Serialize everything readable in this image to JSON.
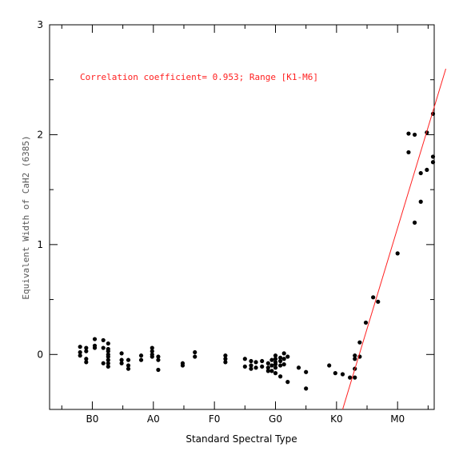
{
  "chart_data": {
    "type": "scatter",
    "xlabel": "Standard Spectral Type",
    "ylabel": "Equivalent Width of CaH2 (6385)",
    "annotation": "Correlation coefficient= 0.953; Range [K1-M6]",
    "xlim": [
      -0.7,
      5.6
    ],
    "ylim": [
      -0.5,
      3
    ],
    "x_ticks": [
      {
        "value": 0,
        "label": "B0"
      },
      {
        "value": 1,
        "label": "A0"
      },
      {
        "value": 2,
        "label": "F0"
      },
      {
        "value": 3,
        "label": "G0"
      },
      {
        "value": 4,
        "label": "K0"
      },
      {
        "value": 5,
        "label": "M0"
      }
    ],
    "x_minor_step": 0.5,
    "y_ticks": [
      {
        "value": 0,
        "label": "0"
      },
      {
        "value": 1,
        "label": "1"
      },
      {
        "value": 2,
        "label": "2"
      },
      {
        "value": 3,
        "label": "3"
      }
    ],
    "y_minor_step": 0.5,
    "fit_line": {
      "x": [
        4.1,
        5.79
      ],
      "y": [
        -0.5,
        2.6
      ],
      "color": "#ff2020"
    },
    "colors": {
      "points": "#000000",
      "fit": "#ff2020",
      "annotation": "#ff2020"
    },
    "points": [
      {
        "x": -0.2,
        "y": 0.07
      },
      {
        "x": -0.2,
        "y": 0.02
      },
      {
        "x": -0.2,
        "y": -0.01
      },
      {
        "x": -0.1,
        "y": 0.06
      },
      {
        "x": -0.1,
        "y": 0.03
      },
      {
        "x": -0.1,
        "y": -0.04
      },
      {
        "x": -0.1,
        "y": -0.07
      },
      {
        "x": 0.04,
        "y": 0.14
      },
      {
        "x": 0.04,
        "y": 0.08
      },
      {
        "x": 0.04,
        "y": 0.06
      },
      {
        "x": 0.18,
        "y": 0.13
      },
      {
        "x": 0.18,
        "y": 0.06
      },
      {
        "x": 0.18,
        "y": -0.08
      },
      {
        "x": 0.26,
        "y": 0.1
      },
      {
        "x": 0.26,
        "y": 0.05
      },
      {
        "x": 0.26,
        "y": 0.03
      },
      {
        "x": 0.26,
        "y": 0.0
      },
      {
        "x": 0.26,
        "y": -0.02
      },
      {
        "x": 0.26,
        "y": -0.05
      },
      {
        "x": 0.26,
        "y": -0.08
      },
      {
        "x": 0.26,
        "y": -0.11
      },
      {
        "x": 0.48,
        "y": 0.01
      },
      {
        "x": 0.48,
        "y": -0.05
      },
      {
        "x": 0.48,
        "y": -0.08
      },
      {
        "x": 0.59,
        "y": -0.05
      },
      {
        "x": 0.59,
        "y": -0.1
      },
      {
        "x": 0.59,
        "y": -0.13
      },
      {
        "x": 0.8,
        "y": -0.01
      },
      {
        "x": 0.8,
        "y": -0.05
      },
      {
        "x": 0.98,
        "y": 0.06
      },
      {
        "x": 0.98,
        "y": 0.03
      },
      {
        "x": 0.98,
        "y": 0.0
      },
      {
        "x": 0.98,
        "y": -0.02
      },
      {
        "x": 1.08,
        "y": -0.02
      },
      {
        "x": 1.08,
        "y": -0.05
      },
      {
        "x": 1.08,
        "y": -0.14
      },
      {
        "x": 1.48,
        "y": -0.08
      },
      {
        "x": 1.48,
        "y": -0.1
      },
      {
        "x": 1.68,
        "y": 0.02
      },
      {
        "x": 1.68,
        "y": -0.02
      },
      {
        "x": 2.18,
        "y": -0.01
      },
      {
        "x": 2.18,
        "y": -0.04
      },
      {
        "x": 2.18,
        "y": -0.07
      },
      {
        "x": 2.5,
        "y": -0.04
      },
      {
        "x": 2.5,
        "y": -0.11
      },
      {
        "x": 2.6,
        "y": -0.06
      },
      {
        "x": 2.6,
        "y": -0.1
      },
      {
        "x": 2.6,
        "y": -0.13
      },
      {
        "x": 2.68,
        "y": -0.07
      },
      {
        "x": 2.68,
        "y": -0.12
      },
      {
        "x": 2.78,
        "y": -0.06
      },
      {
        "x": 2.78,
        "y": -0.11
      },
      {
        "x": 2.88,
        "y": -0.08
      },
      {
        "x": 2.88,
        "y": -0.12
      },
      {
        "x": 2.88,
        "y": -0.15
      },
      {
        "x": 2.94,
        "y": -0.05
      },
      {
        "x": 2.94,
        "y": -0.1
      },
      {
        "x": 2.94,
        "y": -0.15
      },
      {
        "x": 3.0,
        "y": -0.01
      },
      {
        "x": 3.0,
        "y": -0.04
      },
      {
        "x": 3.0,
        "y": -0.07
      },
      {
        "x": 3.0,
        "y": -0.09
      },
      {
        "x": 3.0,
        "y": -0.12
      },
      {
        "x": 3.0,
        "y": -0.17
      },
      {
        "x": 3.08,
        "y": -0.03
      },
      {
        "x": 3.08,
        "y": -0.06
      },
      {
        "x": 3.08,
        "y": -0.1
      },
      {
        "x": 3.08,
        "y": -0.2
      },
      {
        "x": 3.14,
        "y": 0.01
      },
      {
        "x": 3.14,
        "y": -0.04
      },
      {
        "x": 3.14,
        "y": -0.09
      },
      {
        "x": 3.2,
        "y": -0.02
      },
      {
        "x": 3.2,
        "y": -0.25
      },
      {
        "x": 3.38,
        "y": -0.12
      },
      {
        "x": 3.5,
        "y": -0.16
      },
      {
        "x": 3.5,
        "y": -0.31
      },
      {
        "x": 3.88,
        "y": -0.1
      },
      {
        "x": 3.98,
        "y": -0.17
      },
      {
        "x": 4.1,
        "y": -0.18
      },
      {
        "x": 4.22,
        "y": -0.21
      },
      {
        "x": 4.3,
        "y": -0.01
      },
      {
        "x": 4.3,
        "y": -0.04
      },
      {
        "x": 4.3,
        "y": -0.13
      },
      {
        "x": 4.3,
        "y": -0.21
      },
      {
        "x": 4.38,
        "y": 0.11
      },
      {
        "x": 4.38,
        "y": -0.02
      },
      {
        "x": 4.48,
        "y": 0.29
      },
      {
        "x": 4.6,
        "y": 0.52
      },
      {
        "x": 4.68,
        "y": 0.48
      },
      {
        "x": 5.0,
        "y": 0.92
      },
      {
        "x": 5.18,
        "y": 2.01
      },
      {
        "x": 5.18,
        "y": 1.84
      },
      {
        "x": 5.28,
        "y": 2.0
      },
      {
        "x": 5.28,
        "y": 1.2
      },
      {
        "x": 5.38,
        "y": 1.65
      },
      {
        "x": 5.38,
        "y": 1.39
      },
      {
        "x": 5.48,
        "y": 2.02
      },
      {
        "x": 5.48,
        "y": 1.68
      },
      {
        "x": 5.58,
        "y": 2.19
      },
      {
        "x": 5.58,
        "y": 1.8
      },
      {
        "x": 5.58,
        "y": 1.75
      }
    ]
  }
}
